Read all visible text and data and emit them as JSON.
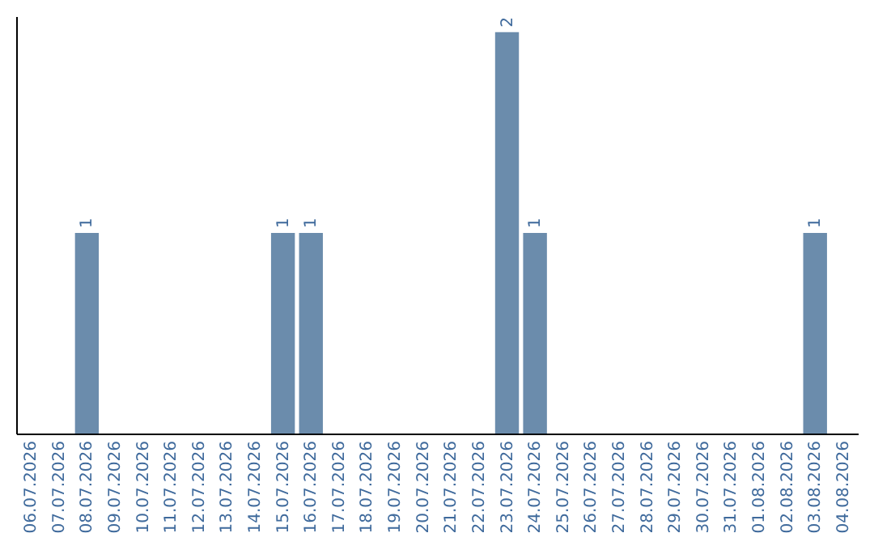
{
  "chart_data": {
    "type": "bar",
    "categories": [
      "06.07.2026",
      "07.07.2026",
      "08.07.2026",
      "09.07.2026",
      "10.07.2026",
      "11.07.2026",
      "12.07.2026",
      "13.07.2026",
      "14.07.2026",
      "15.07.2026",
      "16.07.2026",
      "17.07.2026",
      "18.07.2026",
      "19.07.2026",
      "20.07.2026",
      "21.07.2026",
      "22.07.2026",
      "23.07.2026",
      "24.07.2026",
      "25.07.2026",
      "26.07.2026",
      "27.07.2026",
      "28.07.2026",
      "29.07.2026",
      "30.07.2026",
      "31.07.2026",
      "01.08.2026",
      "02.08.2026",
      "03.08.2026",
      "04.08.2026"
    ],
    "values": [
      0,
      0,
      1,
      0,
      0,
      0,
      0,
      0,
      0,
      1,
      1,
      0,
      0,
      0,
      0,
      0,
      0,
      2,
      1,
      0,
      0,
      0,
      0,
      0,
      0,
      0,
      0,
      0,
      1,
      0
    ],
    "value_labels": [
      null,
      null,
      "1",
      null,
      null,
      null,
      null,
      null,
      null,
      "1",
      "1",
      null,
      null,
      null,
      null,
      null,
      null,
      "2",
      "1",
      null,
      null,
      null,
      null,
      null,
      null,
      null,
      null,
      null,
      "1",
      null
    ],
    "color": "#6b8cac",
    "tick_labels": "x"
  }
}
